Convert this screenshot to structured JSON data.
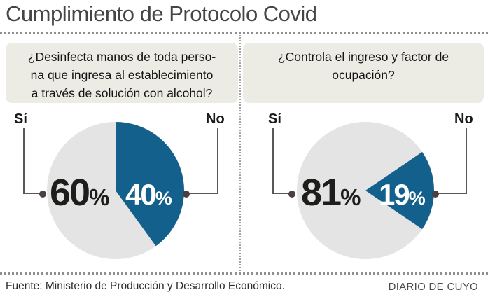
{
  "header": {
    "title": "Cumplimiento de Protocolo Covid"
  },
  "footer": {
    "source": "Fuente: Ministerio de Producción y Desarrollo Económico.",
    "brand": "DIARIO DE CUYO"
  },
  "pct_sign": "%",
  "colors": {
    "yes_slice": "#e4e4e4",
    "no_slice": "#14608c",
    "question_box_bg": "#edece4",
    "connector_line": "#58585a",
    "connector_dot": "#4a4042",
    "title_text": "#454545"
  },
  "chart_data": [
    {
      "type": "pie",
      "title": "¿Desinfecta manos de toda perso-\nna que ingresa al establecimiento\na través de solución con alcohol?",
      "categories": [
        "Sí",
        "No"
      ],
      "values": [
        60,
        40
      ],
      "value_labels": [
        "60%",
        "40%"
      ],
      "layout": {
        "no_slice_start_deg": 0,
        "labels_position": "top-corners",
        "radius_px": 98
      }
    },
    {
      "type": "pie",
      "title": "¿Controla el ingreso y factor de\nocupación?",
      "categories": [
        "Sí",
        "No"
      ],
      "values": [
        81,
        19
      ],
      "value_labels": [
        "81%",
        "19%"
      ],
      "layout": {
        "no_slice_start_deg": 55.8,
        "labels_position": "top-corners",
        "radius_px": 98
      }
    }
  ]
}
